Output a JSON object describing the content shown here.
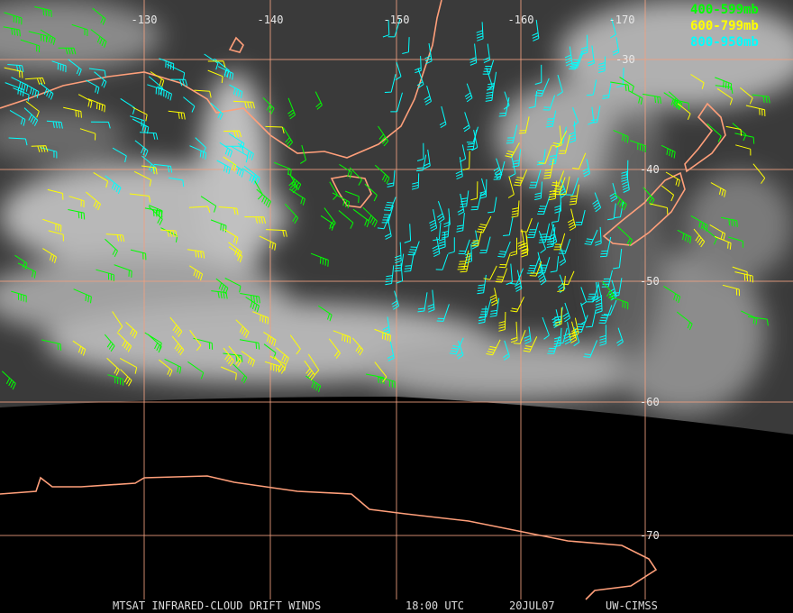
{
  "map": {
    "longitude_labels": [
      "-130",
      "-140",
      "-150",
      "-160",
      "-170"
    ],
    "latitude_labels": [
      "-30",
      "-40",
      "-50",
      "-60",
      "-70"
    ],
    "legend": [
      {
        "label": "400-599mb",
        "color": "#00ff00"
      },
      {
        "label": "600-799mb",
        "color": "#ffff00"
      },
      {
        "label": "800-950mb",
        "color": "#00ffff"
      }
    ],
    "footer": {
      "product": "MTSAT INFRARED-CLOUD DRIFT WINDS",
      "time": "18:00 UTC",
      "date": "20JUL07",
      "source": "UW-CIMSS"
    }
  }
}
